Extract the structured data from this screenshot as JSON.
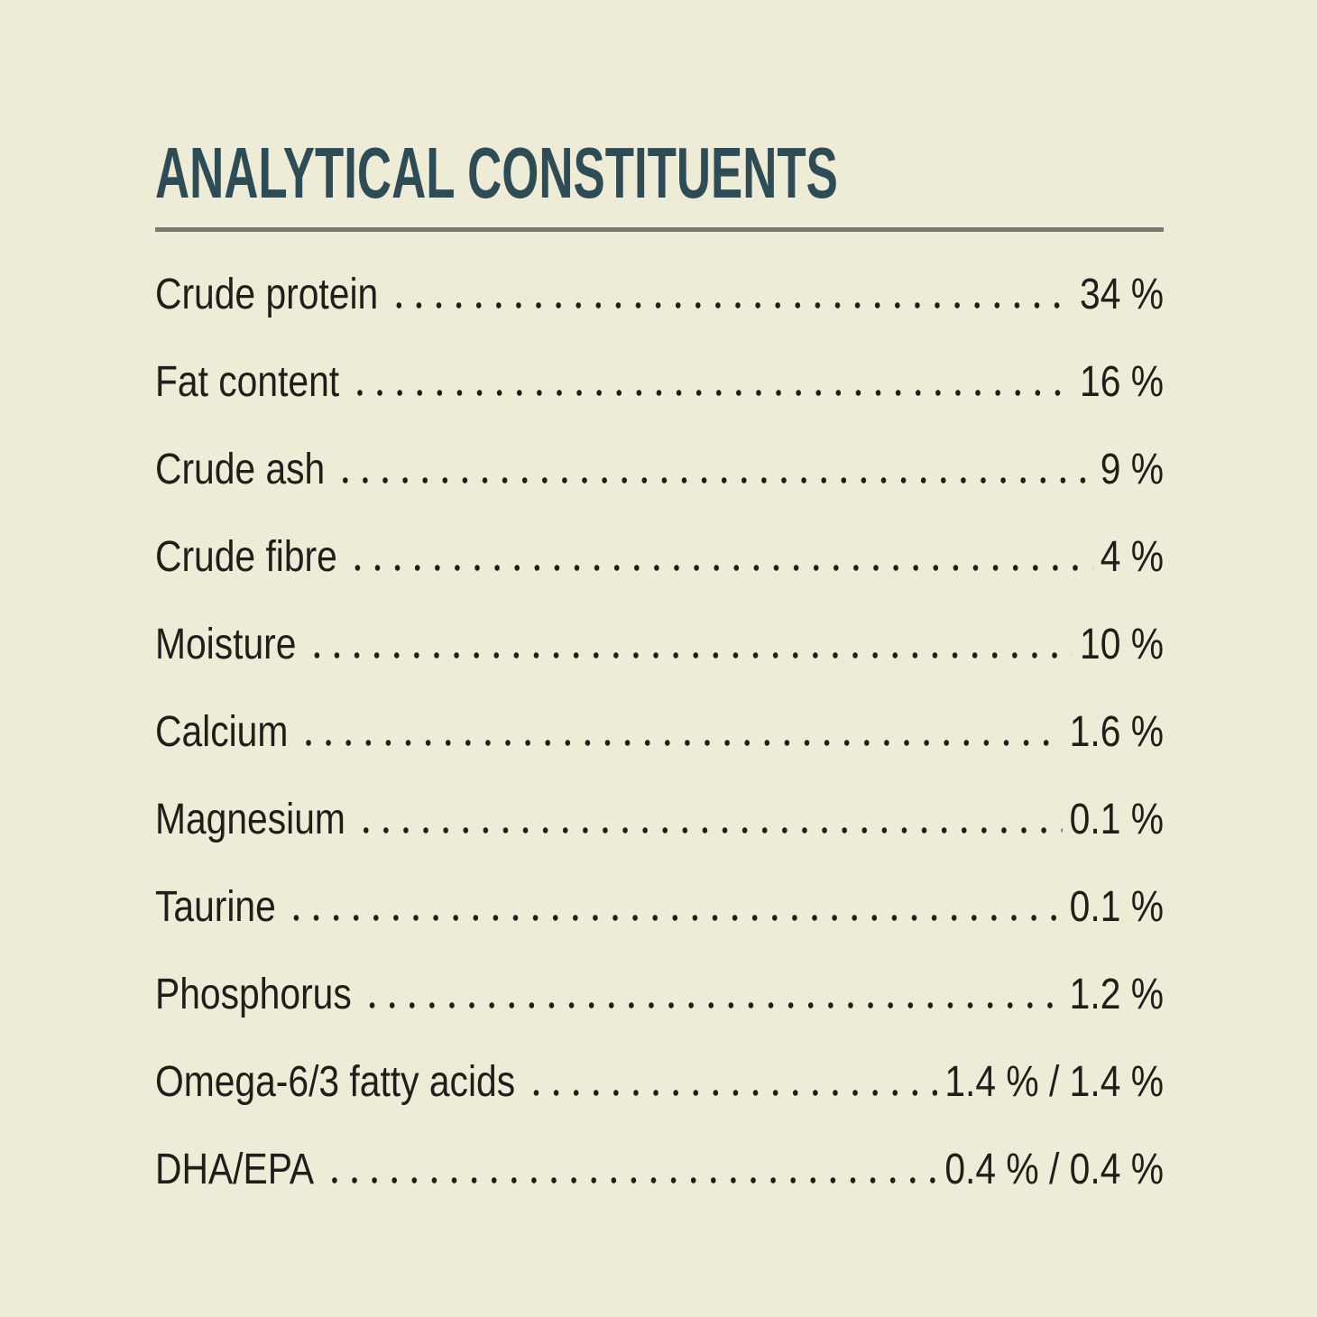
{
  "title": "ANALYTICAL CONSTITUENTS",
  "colors": {
    "bg": "#eeebd7",
    "text": "#201e1a",
    "title": "#2e4c55",
    "rule": "#7b7873"
  },
  "rows": [
    {
      "label": "Crude protein",
      "value": "34 %"
    },
    {
      "label": "Fat content",
      "value": "16 %"
    },
    {
      "label": "Crude ash",
      "value": "9 %"
    },
    {
      "label": "Crude fibre",
      "value": "4 %"
    },
    {
      "label": "Moisture",
      "value": "10 %"
    },
    {
      "label": "Calcium",
      "value": "1.6 %"
    },
    {
      "label": "Magnesium",
      "value": "0.1 %"
    },
    {
      "label": "Taurine",
      "value": "0.1 %"
    },
    {
      "label": "Phosphorus",
      "value": "1.2 %"
    },
    {
      "label": "Omega-6/3 fatty acids",
      "value": "1.4 % / 1.4 %"
    },
    {
      "label": "DHA/EPA",
      "value": "0.4 % / 0.4 %"
    }
  ]
}
